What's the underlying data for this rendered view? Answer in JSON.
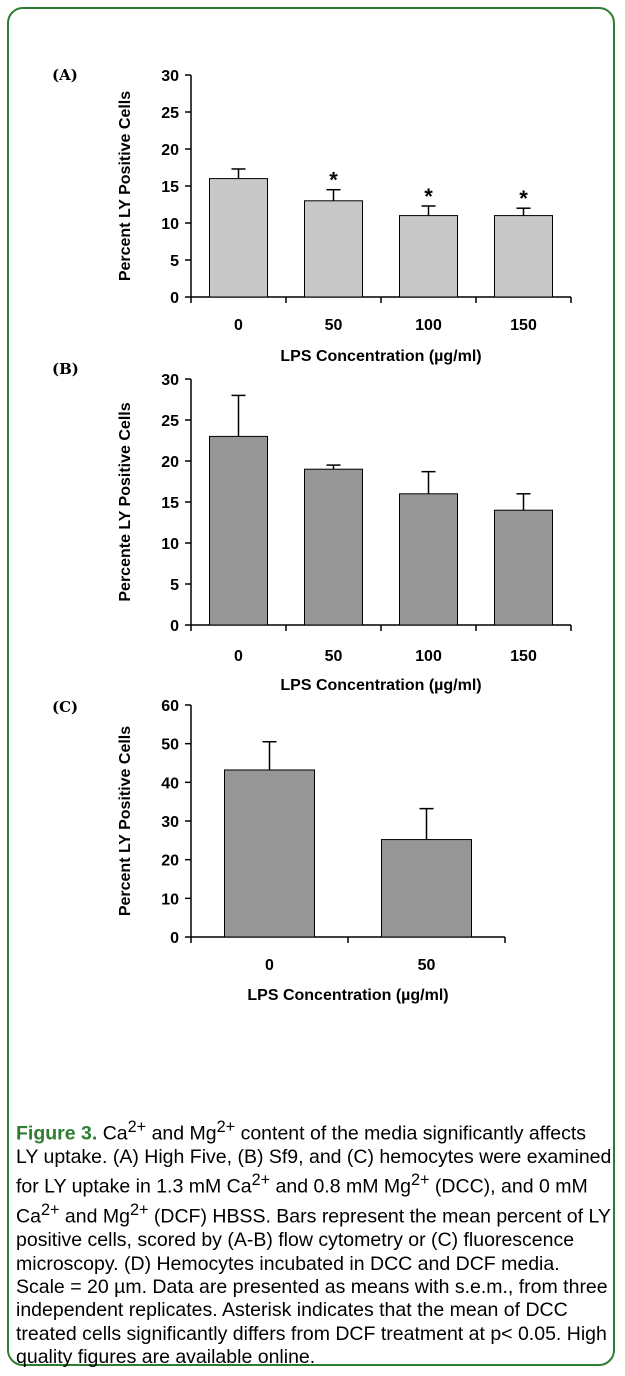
{
  "colors": {
    "frame": "#2e7d32",
    "caption_label": "#2e7d32",
    "bar_fill": "#c8c8c8",
    "bar_fill_dark": "#969696"
  },
  "chart_data": [
    {
      "type": "bar",
      "panel": "(A)",
      "categories": [
        "0",
        "50",
        "100",
        "150"
      ],
      "values": [
        16,
        13,
        11,
        11
      ],
      "errors": [
        1.3,
        1.5,
        1.3,
        1.0
      ],
      "significant": [
        "",
        "*",
        "*",
        "*"
      ],
      "ylabel": "Percent LY Positive Cells",
      "xlabel": "LPS Concentration (µg/ml)",
      "ylim": [
        0,
        30
      ],
      "yticks": [
        0,
        5,
        10,
        15,
        20,
        25,
        30
      ],
      "bar_color": "#c8c8c8"
    },
    {
      "type": "bar",
      "panel": "(B)",
      "categories": [
        "0",
        "50",
        "100",
        "150"
      ],
      "values": [
        23,
        19,
        16,
        14
      ],
      "errors": [
        5.0,
        0.5,
        2.7,
        2.0
      ],
      "significant": [
        "",
        "",
        "",
        ""
      ],
      "ylabel": "Percente LY Positive Cells",
      "xlabel": "LPS Concentration (µg/ml)",
      "ylim": [
        0,
        30
      ],
      "yticks": [
        0,
        5,
        10,
        15,
        20,
        25,
        30
      ],
      "bar_color": "#969696"
    },
    {
      "type": "bar",
      "panel": "(C)",
      "categories": [
        "0",
        "50"
      ],
      "values": [
        43.2,
        25.2
      ],
      "errors": [
        7.3,
        8.0
      ],
      "significant": [
        "",
        ""
      ],
      "ylabel": "Percent LY Positive Cells",
      "xlabel": "LPS Concentration (µg/ml)",
      "ylim": [
        0,
        60
      ],
      "yticks": [
        0,
        10,
        20,
        30,
        40,
        50,
        60
      ],
      "bar_color": "#969696"
    }
  ],
  "caption": {
    "label": "Figure 3.",
    "segments": [
      " Ca",
      "2+",
      " and Mg",
      "2+",
      " content of the media significantly affects LY uptake. (A) High Five, (B) Sf9, and (C) hemocytes were examined for LY uptake in 1.3 mM Ca",
      "2+",
      " and 0.8 mM Mg",
      "2+",
      " (DCC), and 0 mM Ca",
      "2+",
      " and Mg",
      "2+",
      " (DCF) HBSS. Bars represent the mean percent of LY positive cells, scored by (A-B) flow cytometry or (C) fluorescence microscopy. (D) Hemocytes incubated in DCC and DCF media. Scale = 20 µm. Data are presented as means with s.e.m., from three independent replicates. Asterisk indicates that the mean of DCC treated cells significantly differs from DCF treatment at p< 0.05. High quality figures are available online."
    ]
  }
}
